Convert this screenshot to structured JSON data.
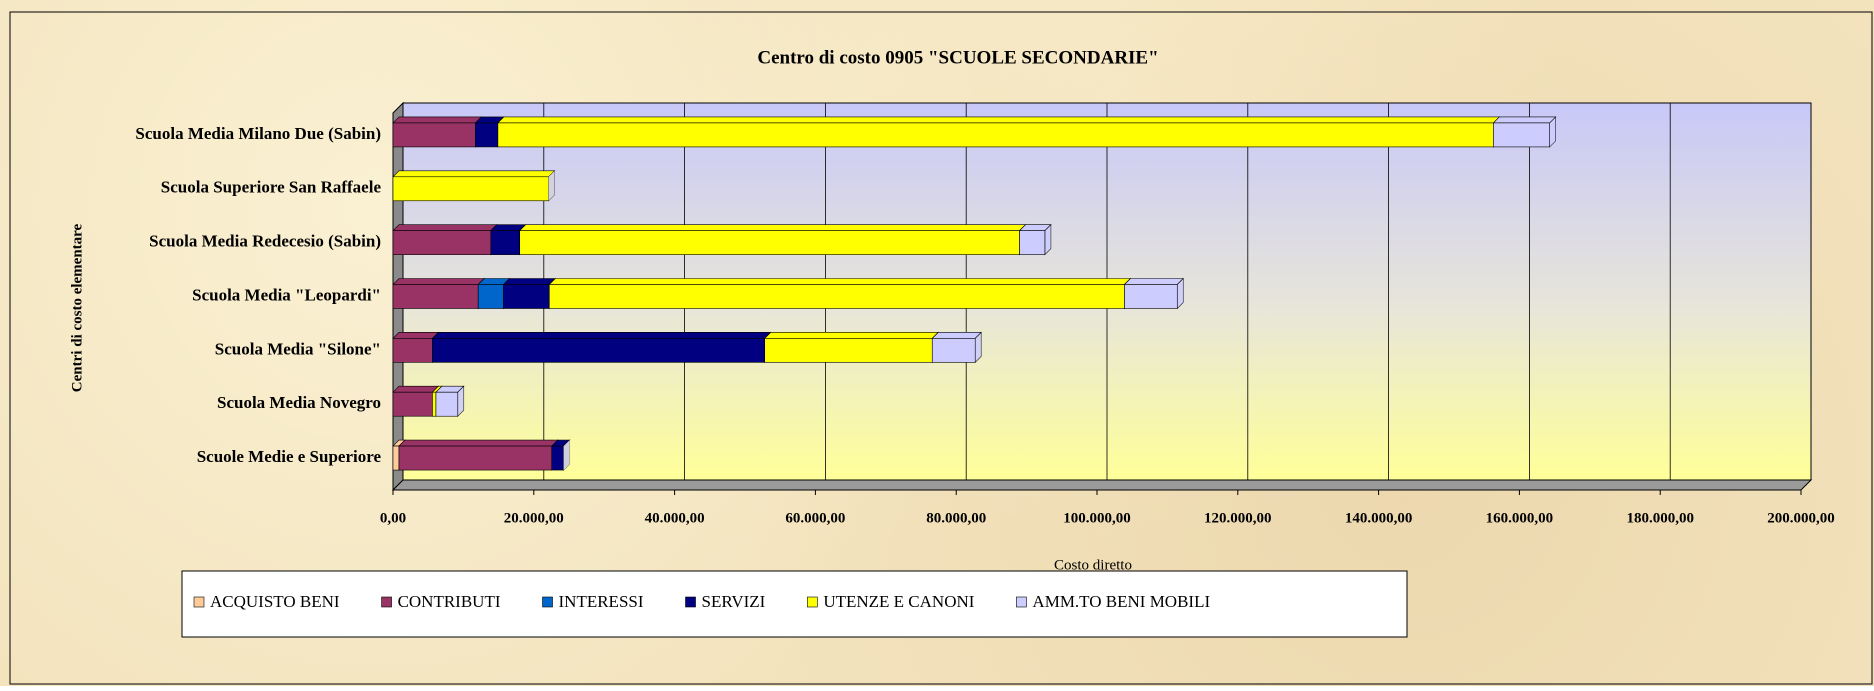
{
  "chart_data": {
    "type": "bar",
    "orientation": "horizontal",
    "stacked": true,
    "title": "Centro di costo 0905 \"SCUOLE SECONDARIE\"",
    "x_label": "Costo diretto",
    "y_label": "Centri di costo elementare",
    "categories": [
      "Scuola Media Milano Due (Sabin)",
      "Scuola Superiore San Raffaele",
      "Scuola Media Redecesio (Sabin)",
      "Scuola Media \"Leopardi\"",
      "Scuola Media \"Silone\"",
      "Scuola Media Novegro",
      "Scuole Medie e Superiore"
    ],
    "series": [
      {
        "name": "ACQUISTO BENI",
        "color": "#ffcc99",
        "values": [
          0,
          0,
          0,
          0,
          0,
          0,
          850
        ]
      },
      {
        "name": "CONTRIBUTI",
        "color": "#993366",
        "values": [
          11700,
          0,
          13900,
          12100,
          5600,
          5600,
          21700
        ]
      },
      {
        "name": "INTERESSI",
        "color": "#0066cc",
        "values": [
          0,
          0,
          0,
          3600,
          0,
          0,
          0
        ]
      },
      {
        "name": "SERVIZI",
        "color": "#000080",
        "values": [
          3200,
          0,
          4100,
          6500,
          47200,
          0,
          1700
        ]
      },
      {
        "name": "UTENZE E CANONI",
        "color": "#ffff00",
        "values": [
          141400,
          22100,
          71000,
          81700,
          23800,
          500,
          0
        ]
      },
      {
        "name": "AMM.TO BENI MOBILI",
        "color": "#ccccff",
        "values": [
          8000,
          0,
          3600,
          7500,
          6100,
          3100,
          0
        ]
      }
    ],
    "xlim": [
      0,
      200000
    ],
    "xticks": [
      {
        "value": 0,
        "label": "0,00"
      },
      {
        "value": 20000,
        "label": "20.000,00"
      },
      {
        "value": 40000,
        "label": "40.000,00"
      },
      {
        "value": 60000,
        "label": "60.000,00"
      },
      {
        "value": 80000,
        "label": "80.000,00"
      },
      {
        "value": 100000,
        "label": "100.000,00"
      },
      {
        "value": 120000,
        "label": "120.000,00"
      },
      {
        "value": 140000,
        "label": "140.000,00"
      },
      {
        "value": 160000,
        "label": "160.000,00"
      },
      {
        "value": 180000,
        "label": "180.000,00"
      },
      {
        "value": 200000,
        "label": "200.000,00"
      }
    ],
    "grid": true,
    "legend": "bottom"
  }
}
